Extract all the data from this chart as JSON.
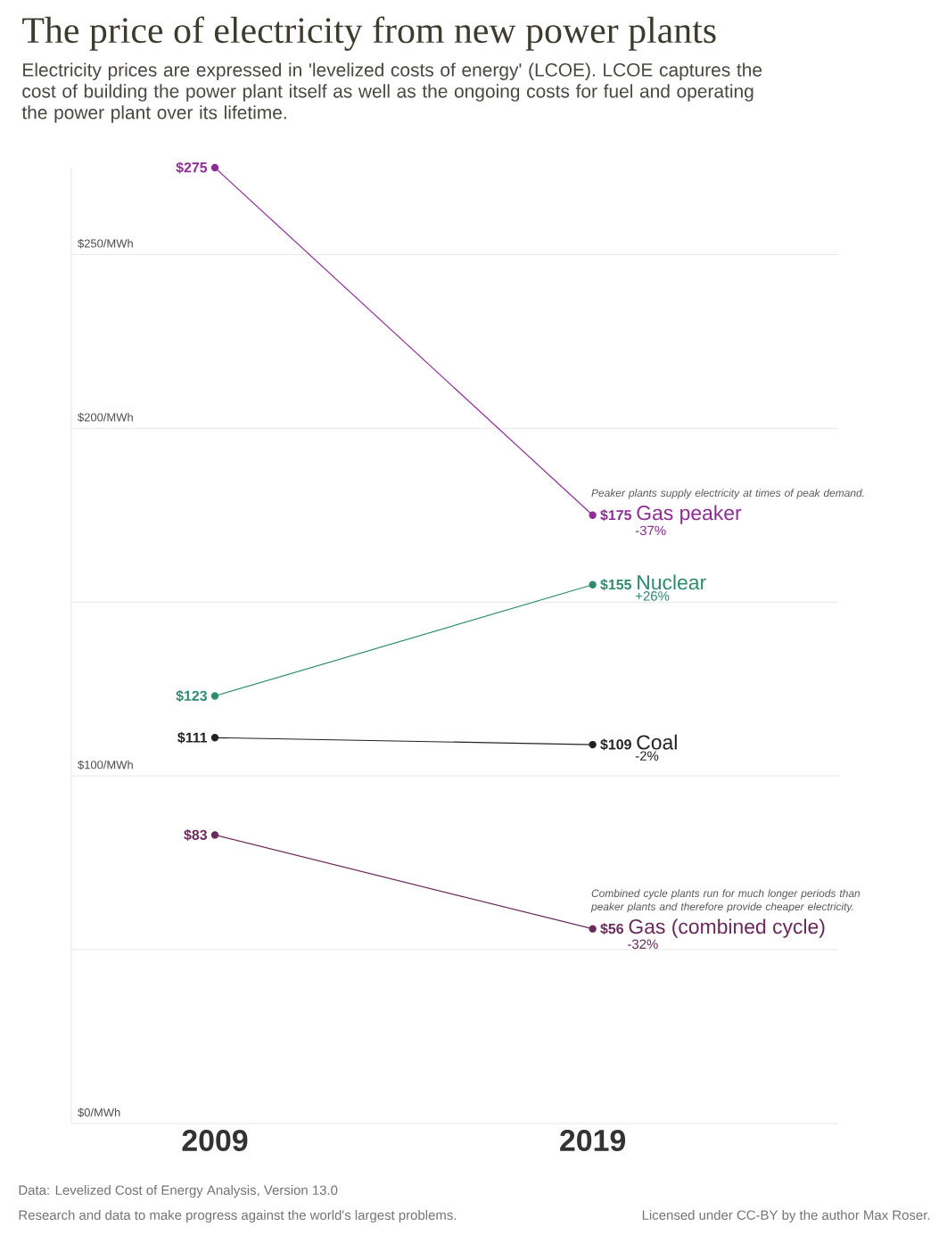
{
  "chart_data": {
    "type": "line",
    "title": "The price of electricity from new power plants",
    "subtitle": "Electricity prices are expressed in 'levelized costs of energy' (LCOE). LCOE captures the cost of building the power plant itself as well as the ongoing costs for fuel and operating the power plant over its lifetime.",
    "categories": [
      "2009",
      "2019"
    ],
    "series": [
      {
        "name": "Gas peaker",
        "color": "#8e2c96",
        "values": [
          275,
          175
        ],
        "value_labels": [
          "$275",
          "$175"
        ]
      },
      {
        "name": "Nuclear",
        "color": "#2e8b6e",
        "values": [
          123,
          155
        ],
        "value_labels": [
          "$123",
          "$155"
        ]
      },
      {
        "name": "Coal",
        "color": "#222222",
        "values": [
          111,
          109
        ],
        "value_labels": [
          "$111",
          "$109"
        ]
      },
      {
        "name": "Gas (combined cycle)",
        "color": "#6b2a5c",
        "values": [
          83,
          56
        ],
        "value_labels": [
          "$83",
          "$56"
        ]
      }
    ],
    "yticks": [
      {
        "value": 0,
        "label": "$0/MWh"
      },
      {
        "value": 50,
        "label": null
      },
      {
        "value": 100,
        "label": "$100/MWh"
      },
      {
        "value": 150,
        "label": null
      },
      {
        "value": 200,
        "label": "$200/MWh"
      },
      {
        "value": 250,
        "label": "$250/MWh"
      }
    ],
    "ylim": [
      0,
      275
    ],
    "grid": "y",
    "marker": "circle",
    "line_style": "solid",
    "legend": false,
    "annotations": [
      {
        "text": "Peaker plants supply electricity at times of peak demand.",
        "x": "2019",
        "y": 175
      },
      {
        "text": "Combined cycle plants run for much longer periods than peaker plants and therefore provide cheaper electricity.",
        "x": "2019",
        "y": 56
      },
      "-37%",
      "+26%",
      "-2%",
      "-32%",
      "Data: Levelized Cost of Energy Analysis, Version 13.0",
      "Research and data to make progress against the world's largest problems.",
      "Licensed under CC-BY by the author Max Roser."
    ]
  }
}
